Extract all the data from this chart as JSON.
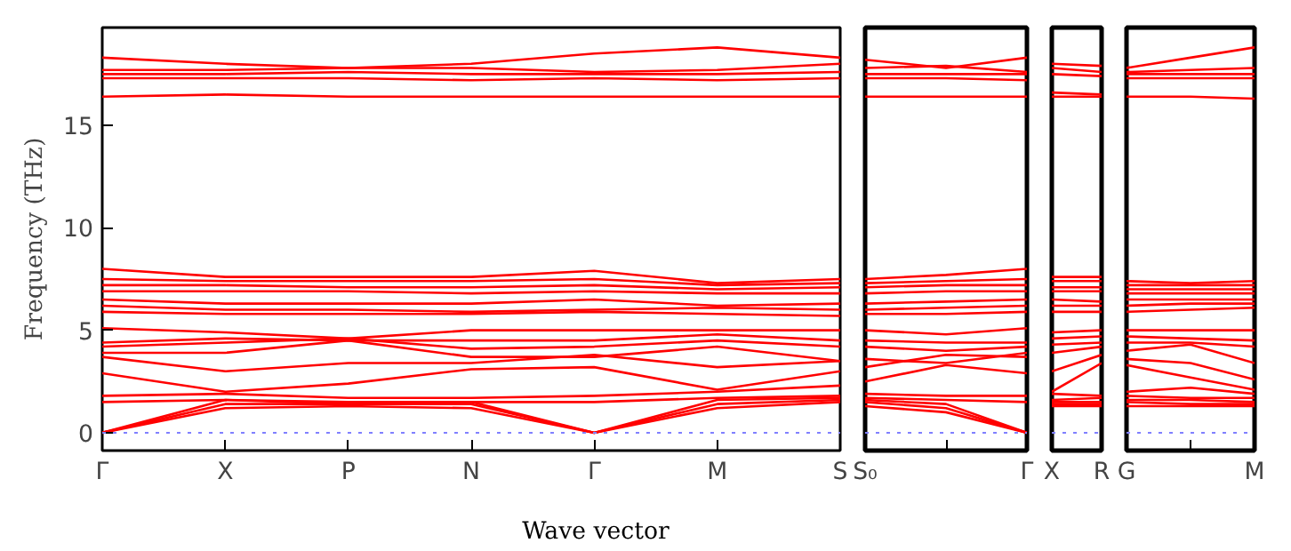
{
  "chart_data": [
    {
      "type": "line",
      "ylabel": "Frequency (THz)",
      "xlabel": "Wave vector",
      "ylim": [
        -0.87,
        19.77
      ],
      "yticks": [
        0,
        5,
        10,
        15
      ],
      "grid": false,
      "categories": [
        "Γ",
        "X",
        "P",
        "N",
        "Γ",
        "M",
        "S"
      ],
      "ref_lines": [
        {
          "axis": "y",
          "value": 0,
          "color": "#8080ff",
          "line_style": "dotted"
        }
      ],
      "series": [
        {
          "color": "#ff0000",
          "values": [
            18.3,
            18.0,
            17.8,
            18.0,
            18.5,
            18.8,
            18.3
          ]
        },
        {
          "color": "#ff0000",
          "values": [
            17.7,
            17.7,
            17.8,
            17.8,
            17.6,
            17.7,
            18.0
          ]
        },
        {
          "color": "#ff0000",
          "values": [
            17.5,
            17.5,
            17.6,
            17.5,
            17.5,
            17.5,
            17.6
          ]
        },
        {
          "color": "#ff0000",
          "values": [
            17.3,
            17.3,
            17.3,
            17.2,
            17.3,
            17.2,
            17.3
          ]
        },
        {
          "color": "#ff0000",
          "values": [
            16.4,
            16.5,
            16.4,
            16.4,
            16.4,
            16.4,
            16.4
          ]
        },
        {
          "color": "#ff0000",
          "values": [
            8.0,
            7.6,
            7.6,
            7.6,
            7.9,
            7.3,
            7.5
          ]
        },
        {
          "color": "#ff0000",
          "values": [
            7.5,
            7.4,
            7.4,
            7.4,
            7.5,
            7.2,
            7.3
          ]
        },
        {
          "color": "#ff0000",
          "values": [
            7.2,
            7.2,
            7.1,
            7.1,
            7.2,
            7.0,
            7.1
          ]
        },
        {
          "color": "#ff0000",
          "values": [
            6.9,
            6.9,
            6.9,
            6.8,
            6.9,
            6.8,
            6.8
          ]
        },
        {
          "color": "#ff0000",
          "values": [
            6.5,
            6.3,
            6.3,
            6.3,
            6.5,
            6.2,
            6.3
          ]
        },
        {
          "color": "#ff0000",
          "values": [
            6.2,
            6.0,
            6.0,
            5.9,
            6.0,
            6.1,
            6.0
          ]
        },
        {
          "color": "#ff0000",
          "values": [
            5.9,
            5.8,
            5.8,
            5.8,
            5.9,
            5.8,
            5.7
          ]
        },
        {
          "color": "#ff0000",
          "values": [
            0,
            1.2,
            1.3,
            1.2,
            0,
            1.2,
            1.5
          ]
        },
        {
          "color": "#ff0000",
          "values": [
            0,
            1.4,
            1.4,
            1.4,
            0,
            1.4,
            1.6
          ]
        },
        {
          "color": "#ff0000",
          "values": [
            0,
            1.6,
            1.4,
            1.5,
            0,
            1.6,
            1.7
          ]
        },
        {
          "color": "#ff0000",
          "values": [
            1.5,
            1.6,
            1.5,
            1.5,
            1.5,
            1.7,
            1.8
          ]
        },
        {
          "color": "#ff0000",
          "values": [
            1.8,
            1.9,
            1.7,
            1.7,
            1.8,
            2.0,
            2.3
          ]
        },
        {
          "color": "#ff0000",
          "values": [
            2.9,
            2.0,
            2.4,
            3.1,
            3.2,
            2.1,
            3.0
          ]
        },
        {
          "color": "#ff0000",
          "values": [
            3.7,
            3.0,
            3.4,
            3.4,
            3.8,
            3.2,
            3.5
          ]
        },
        {
          "color": "#ff0000",
          "values": [
            3.9,
            3.9,
            4.5,
            3.7,
            3.7,
            4.2,
            3.5
          ]
        },
        {
          "color": "#ff0000",
          "values": [
            4.2,
            4.4,
            4.6,
            4.1,
            4.2,
            4.5,
            4.2
          ]
        },
        {
          "color": "#ff0000",
          "values": [
            4.4,
            4.6,
            4.5,
            4.5,
            4.5,
            4.8,
            4.5
          ]
        },
        {
          "color": "#ff0000",
          "values": [
            5.1,
            4.9,
            4.6,
            5.0,
            5.0,
            5.0,
            5.0
          ]
        }
      ]
    },
    {
      "type": "line",
      "ylim": [
        -0.87,
        19.77
      ],
      "tick_labels": "x",
      "grid": false,
      "categories": [
        "S₀",
        null,
        "Γ"
      ],
      "ref_lines": [
        {
          "axis": "y",
          "value": 0,
          "color": "#8080ff",
          "line_style": "dotted"
        }
      ],
      "series": [
        {
          "color": "#ff0000",
          "values": [
            18.2,
            17.8,
            18.3
          ]
        },
        {
          "color": "#ff0000",
          "values": [
            17.8,
            17.9,
            17.6
          ]
        },
        {
          "color": "#ff0000",
          "values": [
            17.5,
            17.5,
            17.5
          ]
        },
        {
          "color": "#ff0000",
          "values": [
            17.3,
            17.3,
            17.2
          ]
        },
        {
          "color": "#ff0000",
          "values": [
            16.4,
            16.4,
            16.4
          ]
        },
        {
          "color": "#ff0000",
          "values": [
            7.5,
            7.7,
            8.0
          ]
        },
        {
          "color": "#ff0000",
          "values": [
            7.3,
            7.4,
            7.5
          ]
        },
        {
          "color": "#ff0000",
          "values": [
            7.1,
            7.2,
            7.2
          ]
        },
        {
          "color": "#ff0000",
          "values": [
            6.8,
            6.9,
            6.9
          ]
        },
        {
          "color": "#ff0000",
          "values": [
            6.3,
            6.4,
            6.5
          ]
        },
        {
          "color": "#ff0000",
          "values": [
            6.0,
            6.1,
            6.2
          ]
        },
        {
          "color": "#ff0000",
          "values": [
            5.8,
            5.8,
            5.9
          ]
        },
        {
          "color": "#ff0000",
          "values": [
            1.3,
            1.0,
            0
          ]
        },
        {
          "color": "#ff0000",
          "values": [
            1.5,
            1.2,
            0
          ]
        },
        {
          "color": "#ff0000",
          "values": [
            1.6,
            1.4,
            0
          ]
        },
        {
          "color": "#ff0000",
          "values": [
            1.7,
            1.6,
            1.5
          ]
        },
        {
          "color": "#ff0000",
          "values": [
            1.9,
            1.8,
            1.8
          ]
        },
        {
          "color": "#ff0000",
          "values": [
            2.5,
            3.3,
            2.9
          ]
        },
        {
          "color": "#ff0000",
          "values": [
            3.2,
            3.8,
            3.7
          ]
        },
        {
          "color": "#ff0000",
          "values": [
            3.6,
            3.4,
            3.9
          ]
        },
        {
          "color": "#ff0000",
          "values": [
            4.2,
            4.0,
            4.2
          ]
        },
        {
          "color": "#ff0000",
          "values": [
            4.5,
            4.4,
            4.4
          ]
        },
        {
          "color": "#ff0000",
          "values": [
            5.0,
            4.8,
            5.1
          ]
        }
      ]
    },
    {
      "type": "line",
      "ylim": [
        -0.87,
        19.77
      ],
      "tick_labels": "x",
      "grid": false,
      "categories": [
        "X",
        "R"
      ],
      "ref_lines": [
        {
          "axis": "y",
          "value": 0,
          "color": "#8080ff",
          "line_style": "dotted"
        }
      ],
      "series": [
        {
          "color": "#ff0000",
          "values": [
            18.0,
            17.9
          ]
        },
        {
          "color": "#ff0000",
          "values": [
            17.8,
            17.6
          ]
        },
        {
          "color": "#ff0000",
          "values": [
            17.5,
            17.4
          ]
        },
        {
          "color": "#ff0000",
          "values": [
            16.6,
            16.5
          ]
        },
        {
          "color": "#ff0000",
          "values": [
            16.4,
            16.4
          ]
        },
        {
          "color": "#ff0000",
          "values": [
            7.6,
            7.6
          ]
        },
        {
          "color": "#ff0000",
          "values": [
            7.4,
            7.4
          ]
        },
        {
          "color": "#ff0000",
          "values": [
            7.1,
            7.1
          ]
        },
        {
          "color": "#ff0000",
          "values": [
            6.9,
            6.9
          ]
        },
        {
          "color": "#ff0000",
          "values": [
            6.5,
            6.4
          ]
        },
        {
          "color": "#ff0000",
          "values": [
            6.2,
            6.2
          ]
        },
        {
          "color": "#ff0000",
          "values": [
            5.9,
            5.9
          ]
        },
        {
          "color": "#ff0000",
          "values": [
            1.3,
            1.3
          ]
        },
        {
          "color": "#ff0000",
          "values": [
            1.4,
            1.4
          ]
        },
        {
          "color": "#ff0000",
          "values": [
            1.5,
            1.5
          ]
        },
        {
          "color": "#ff0000",
          "values": [
            1.6,
            1.7
          ]
        },
        {
          "color": "#ff0000",
          "values": [
            1.9,
            1.8
          ]
        },
        {
          "color": "#ff0000",
          "values": [
            2.0,
            3.4
          ]
        },
        {
          "color": "#ff0000",
          "values": [
            3.0,
            3.8
          ]
        },
        {
          "color": "#ff0000",
          "values": [
            3.9,
            4.2
          ]
        },
        {
          "color": "#ff0000",
          "values": [
            4.3,
            4.4
          ]
        },
        {
          "color": "#ff0000",
          "values": [
            4.6,
            4.7
          ]
        },
        {
          "color": "#ff0000",
          "values": [
            4.9,
            5.0
          ]
        }
      ]
    },
    {
      "type": "line",
      "ylim": [
        -0.87,
        19.77
      ],
      "tick_labels": "x",
      "grid": false,
      "categories": [
        "G",
        null,
        "M"
      ],
      "ref_lines": [
        {
          "axis": "y",
          "value": 0,
          "color": "#8080ff",
          "line_style": "dotted"
        }
      ],
      "series": [
        {
          "color": "#ff0000",
          "values": [
            17.8,
            18.3,
            18.8
          ]
        },
        {
          "color": "#ff0000",
          "values": [
            17.6,
            17.7,
            17.8
          ]
        },
        {
          "color": "#ff0000",
          "values": [
            17.5,
            17.5,
            17.5
          ]
        },
        {
          "color": "#ff0000",
          "values": [
            17.3,
            17.3,
            17.3
          ]
        },
        {
          "color": "#ff0000",
          "values": [
            16.4,
            16.4,
            16.3
          ]
        },
        {
          "color": "#ff0000",
          "values": [
            7.4,
            7.3,
            7.4
          ]
        },
        {
          "color": "#ff0000",
          "values": [
            7.2,
            7.2,
            7.2
          ]
        },
        {
          "color": "#ff0000",
          "values": [
            7.0,
            7.0,
            7.0
          ]
        },
        {
          "color": "#ff0000",
          "values": [
            6.8,
            6.8,
            6.8
          ]
        },
        {
          "color": "#ff0000",
          "values": [
            6.5,
            6.5,
            6.5
          ]
        },
        {
          "color": "#ff0000",
          "values": [
            6.2,
            6.3,
            6.3
          ]
        },
        {
          "color": "#ff0000",
          "values": [
            5.9,
            6.0,
            6.1
          ]
        },
        {
          "color": "#ff0000",
          "values": [
            1.3,
            1.3,
            1.3
          ]
        },
        {
          "color": "#ff0000",
          "values": [
            1.5,
            1.4,
            1.4
          ]
        },
        {
          "color": "#ff0000",
          "values": [
            1.6,
            1.6,
            1.5
          ]
        },
        {
          "color": "#ff0000",
          "values": [
            1.8,
            1.7,
            1.7
          ]
        },
        {
          "color": "#ff0000",
          "values": [
            2.0,
            2.2,
            1.9
          ]
        },
        {
          "color": "#ff0000",
          "values": [
            3.3,
            2.7,
            2.1
          ]
        },
        {
          "color": "#ff0000",
          "values": [
            3.6,
            3.4,
            2.6
          ]
        },
        {
          "color": "#ff0000",
          "values": [
            4.0,
            4.3,
            3.4
          ]
        },
        {
          "color": "#ff0000",
          "values": [
            4.4,
            4.4,
            4.2
          ]
        },
        {
          "color": "#ff0000",
          "values": [
            4.7,
            4.6,
            4.5
          ]
        },
        {
          "color": "#ff0000",
          "values": [
            5.0,
            5.0,
            5.0
          ]
        }
      ]
    }
  ]
}
